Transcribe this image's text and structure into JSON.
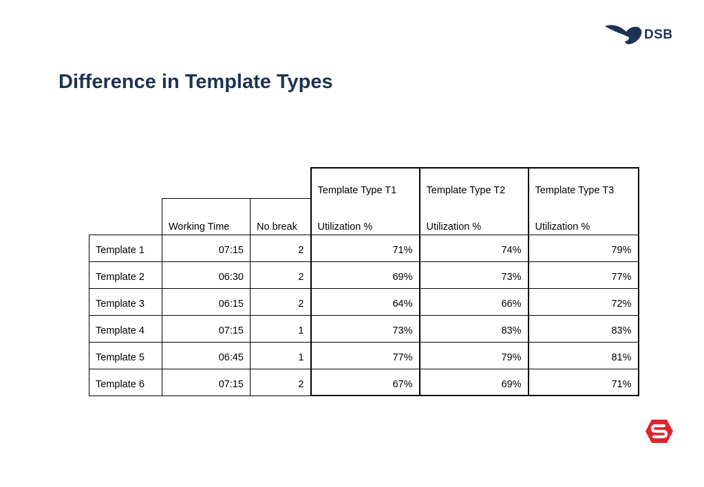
{
  "brand": {
    "wordmark": "DSB",
    "primary_color": "#1c3355",
    "accent_color": "#e0242b"
  },
  "page": {
    "title": "Difference in Template Types"
  },
  "table": {
    "header_row1": {
      "t1": "Template Type T1",
      "t2": "Template Type T2",
      "t3": "Template Type T3"
    },
    "header_row2": {
      "working_time": "Working Time",
      "no_break": "No break",
      "t1": "Utilization %",
      "t2": "Utilization %",
      "t3": "Utilization %"
    },
    "rows": [
      {
        "name": "Template 1",
        "working_time": "07:15",
        "no_break": "2",
        "t1": "71%",
        "t2": "74%",
        "t3": "79%"
      },
      {
        "name": "Template 2",
        "working_time": "06:30",
        "no_break": "2",
        "t1": "69%",
        "t2": "73%",
        "t3": "77%"
      },
      {
        "name": "Template 3",
        "working_time": "06:15",
        "no_break": "2",
        "t1": "64%",
        "t2": "66%",
        "t3": "72%"
      },
      {
        "name": "Template 4",
        "working_time": "07:15",
        "no_break": "1",
        "t1": "73%",
        "t2": "83%",
        "t3": "83%"
      },
      {
        "name": "Template 5",
        "working_time": "06:45",
        "no_break": "1",
        "t1": "77%",
        "t2": "79%",
        "t3": "81%"
      },
      {
        "name": "Template 6",
        "working_time": "07:15",
        "no_break": "2",
        "t1": "67%",
        "t2": "69%",
        "t3": "71%"
      }
    ]
  }
}
